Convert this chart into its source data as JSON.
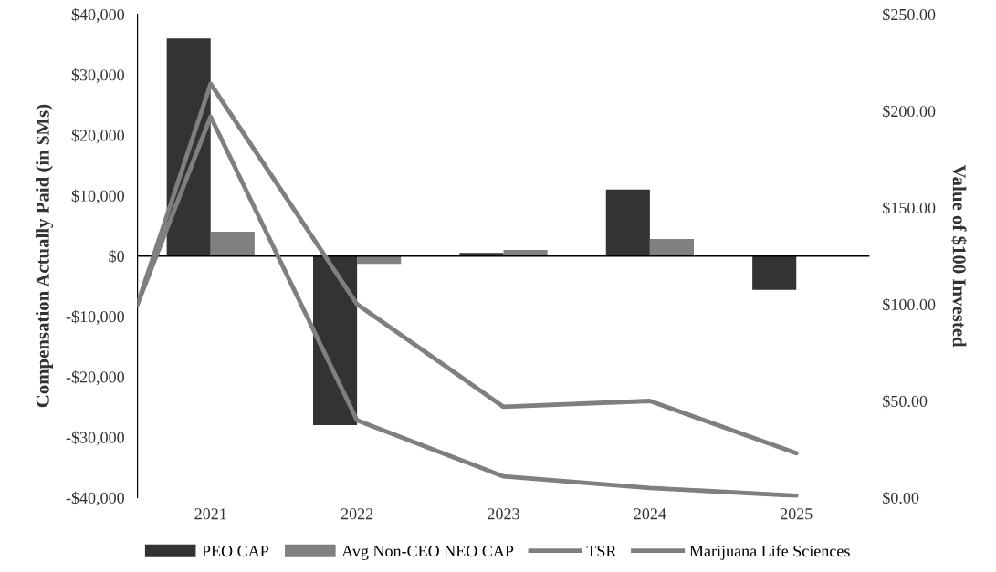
{
  "chart_data": {
    "type": "bar",
    "ylabel": "Compensation Actually Paid (in $Ms)",
    "y2label": "Value of $100 Invested",
    "x": [
      2021,
      2022,
      2023,
      2024,
      2025
    ],
    "xlim": [
      2020.5,
      2025.5
    ],
    "xticks": [
      2021,
      2022,
      2023,
      2024,
      2025
    ],
    "ylim": [
      -40000,
      40000
    ],
    "yticks": [
      {
        "value": -40000,
        "label": "-$40,000"
      },
      {
        "value": -30000,
        "label": "-$30,000"
      },
      {
        "value": -20000,
        "label": "-$20,000"
      },
      {
        "value": -10000,
        "label": "-$10,000"
      },
      {
        "value": 0,
        "label": "$0"
      },
      {
        "value": 10000,
        "label": "$10,000"
      },
      {
        "value": 20000,
        "label": "$20,000"
      },
      {
        "value": 30000,
        "label": "$30,000"
      },
      {
        "value": 40000,
        "label": "$40,000"
      }
    ],
    "y2lim": [
      0,
      250
    ],
    "y2ticks": [
      {
        "value": 0,
        "label": "$0.00"
      },
      {
        "value": 50,
        "label": "$50.00"
      },
      {
        "value": 100,
        "label": "$100.00"
      },
      {
        "value": 150,
        "label": "$150.00"
      },
      {
        "value": 200,
        "label": "$200.00"
      },
      {
        "value": 250,
        "label": "$250.00"
      }
    ],
    "series": [
      {
        "name": "PEO CAP",
        "color": "#333333",
        "values": [
          36000,
          -28000,
          500,
          11000,
          -5600
        ]
      },
      {
        "name": "Avg Non-CEO NEO CAP",
        "color": "#808080",
        "values": [
          4000,
          -1300,
          1000,
          2800,
          0
        ]
      },
      {
        "name": "TSR",
        "type": "line",
        "axis": "y2",
        "color": "#7f7f7f",
        "x": [
          2020.5,
          2021,
          2022,
          2023,
          2024,
          2025
        ],
        "values": [
          100,
          197,
          40,
          11,
          5,
          1
        ]
      },
      {
        "name": "Marijuana Life Sciences",
        "type": "line",
        "axis": "y2",
        "color": "#7f7f7f",
        "x": [
          2020.5,
          2021,
          2022,
          2023,
          2024,
          2025
        ],
        "values": [
          100,
          214,
          100,
          47,
          50,
          23
        ]
      }
    ],
    "legend": "bottom"
  }
}
